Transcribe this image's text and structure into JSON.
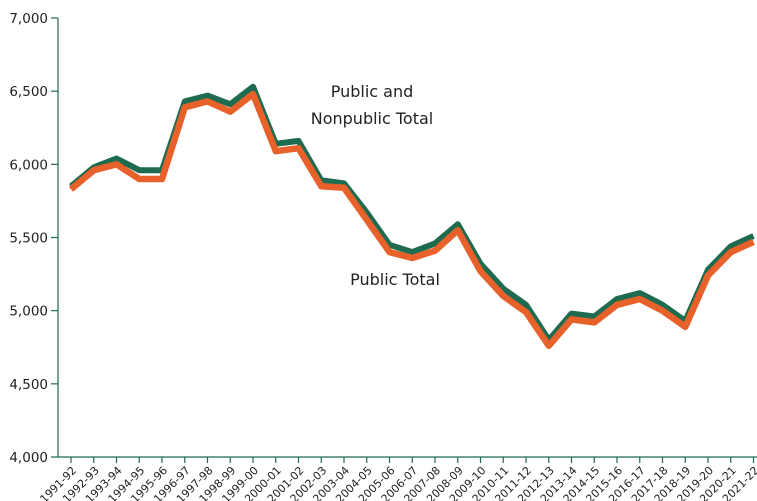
{
  "chart_data": {
    "type": "line",
    "title": "",
    "xlabel": "",
    "ylabel": "",
    "ylim": [
      4000,
      7000
    ],
    "yticks": [
      "4,000",
      "4,500",
      "5,000",
      "5,500",
      "6,000",
      "6,500",
      "7,000"
    ],
    "grid": false,
    "categories": [
      "1991-92",
      "1992-93",
      "1993-94",
      "1994-95",
      "1995-96",
      "1996-97",
      "1997-98",
      "1998-99",
      "1999-00",
      "2000-01",
      "2001-02",
      "2002-03",
      "2003-04",
      "2004-05",
      "2005-06",
      "2006-07",
      "2007-08",
      "2008-09",
      "2009-10",
      "2010-11",
      "2011-12",
      "2012-13",
      "2013-14",
      "2014-15",
      "2015-16",
      "2016-17",
      "2017-18",
      "2018-19",
      "2019-20",
      "2020-21",
      "2021-22"
    ],
    "series": [
      {
        "name": "Public and Nonpublic Total",
        "color": "#1e6b4f",
        "values": [
          5850,
          5980,
          6040,
          5960,
          5960,
          6430,
          6470,
          6410,
          6530,
          6140,
          6160,
          5890,
          5870,
          5670,
          5450,
          5400,
          5460,
          5590,
          5320,
          5150,
          5040,
          4800,
          4980,
          4960,
          5080,
          5120,
          5040,
          4930,
          5280,
          5440,
          5510
        ]
      },
      {
        "name": "Public Total",
        "color": "#e8602a",
        "values": [
          5830,
          5960,
          6000,
          5900,
          5900,
          6390,
          6430,
          6360,
          6480,
          6090,
          6110,
          5850,
          5840,
          5620,
          5400,
          5360,
          5410,
          5550,
          5270,
          5100,
          4990,
          4760,
          4940,
          4920,
          5040,
          5080,
          5000,
          4890,
          5240,
          5400,
          5470
        ]
      }
    ],
    "annotations": [
      "Public and Nonpublic Total",
      "Public Total"
    ]
  }
}
